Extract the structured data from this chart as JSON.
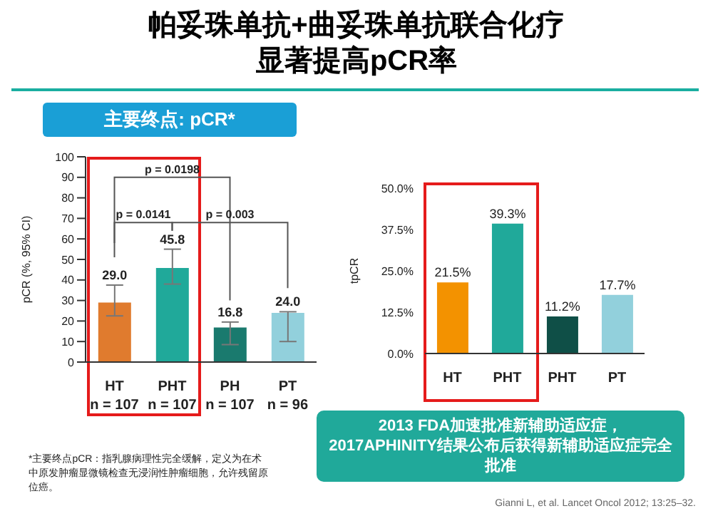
{
  "chart_data": [
    {
      "type": "bar",
      "title": "帕妥珠单抗+曲妥珠单抗联合化疗显著提高pCR率",
      "subtitle": "主要终点: pCR*",
      "ylabel": "pCR (%, 95% CI)",
      "categories": [
        "HT\nn = 107",
        "PHT\nn = 107",
        "PH\nn = 107",
        "PT\nn = 96"
      ],
      "values": [
        29.0,
        45.8,
        16.8,
        24.0
      ],
      "colors": [
        "#e07b2e",
        "#20a99a",
        "#1a7a6e",
        "#92d0dc"
      ],
      "errors": [
        [
          22.5,
          37.5
        ],
        [
          38,
          55
        ],
        [
          8.5,
          19.5
        ],
        [
          10,
          24.5
        ]
      ],
      "value_labels": [
        "29.0",
        "45.8",
        "16.8",
        "24.0"
      ],
      "ylim": [
        0,
        100
      ],
      "yticks": [
        0,
        10,
        20,
        30,
        40,
        50,
        60,
        70,
        80,
        90,
        100
      ],
      "grid": false,
      "legend": false,
      "annotations": [
        "p = 0.0198",
        "p = 0.0141",
        "p = 0.003",
        "*主要终点pCR：指乳腺病理性完全缓解，定义为在术中原发肿瘤显微镜检查无浸润性肿瘤细胞，允许残留原位癌。",
        "Gianni L, et al. Lancet Oncol 2012; 13:25–32."
      ]
    },
    {
      "type": "bar",
      "ylabel": "tpCR",
      "categories": [
        "HT",
        "PHT",
        "PHT",
        "PT"
      ],
      "values": [
        21.5,
        39.3,
        11.2,
        17.7
      ],
      "colors": [
        "#f39200",
        "#20a99a",
        "#0f4f47",
        "#92d0dc"
      ],
      "value_labels": [
        "21.5%",
        "39.3%",
        "11.2%",
        "17.7%"
      ],
      "ylim": [
        0,
        50
      ],
      "yticks": [
        {
          "value": 0,
          "label": "0.0%"
        },
        {
          "value": 12.5,
          "label": "12.5%"
        },
        {
          "value": 25,
          "label": "25.0%"
        },
        {
          "value": 37.5,
          "label": "37.5%"
        },
        {
          "value": 50,
          "label": "50.0%"
        }
      ],
      "grid": false,
      "legend": false,
      "annotations": [
        "2013 FDA加速批准新辅助适应症，2017APHINITY结果公布后获得新辅助适应症完全批准"
      ]
    }
  ]
}
